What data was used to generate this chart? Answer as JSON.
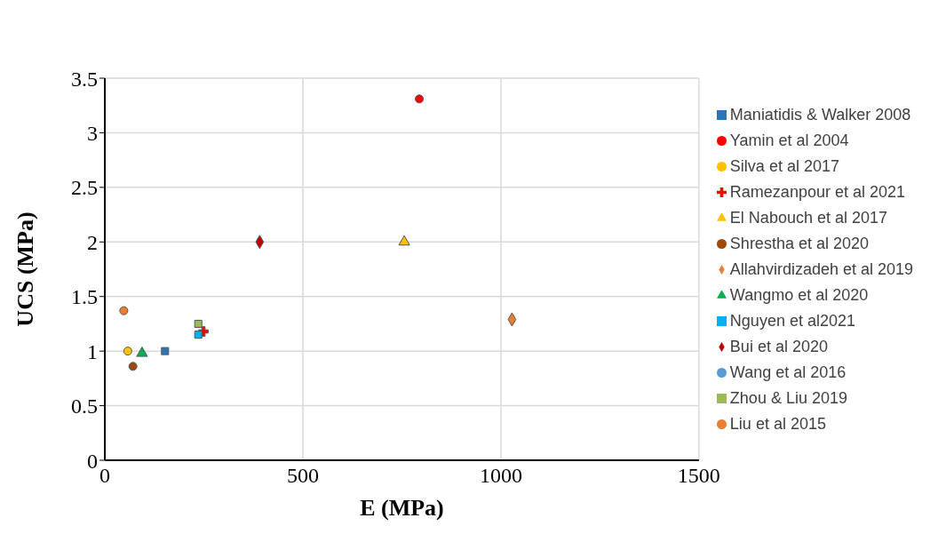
{
  "chart_data": {
    "type": "scatter",
    "xlabel": "E (MPa)",
    "ylabel": "UCS (MPa)",
    "xlim": [
      0,
      1500
    ],
    "xticks": [
      0,
      500,
      1000,
      1500
    ],
    "ylim": [
      0,
      3.5
    ],
    "yticks": [
      0,
      0.5,
      1,
      1.5,
      2,
      2.5,
      3,
      3.5
    ],
    "grid": true,
    "legend": "right",
    "series": [
      {
        "name": "Maniatidis & Walker 2008",
        "color": "#2e75b6",
        "marker": "square",
        "x": [
          152
        ],
        "values": [
          1.0
        ]
      },
      {
        "name": "Yamin et al 2004",
        "color": "#ff0000",
        "marker": "circle",
        "x": [
          794
        ],
        "values": [
          3.31
        ]
      },
      {
        "name": "Silva et al 2017",
        "color": "#ffc000",
        "marker": "circle",
        "x": [
          58
        ],
        "values": [
          1.0
        ]
      },
      {
        "name": "Ramezanpour et al 2021",
        "color": "#ff0000",
        "marker": "cross",
        "x": [
          249
        ],
        "values": [
          1.18
        ]
      },
      {
        "name": "El Nabouch et al 2017",
        "color": "#ffc000",
        "marker": "triangle",
        "x": [
          756
        ],
        "values": [
          2.0
        ]
      },
      {
        "name": "Shrestha et al 2020",
        "color": "#9e480e",
        "marker": "circle",
        "x": [
          71
        ],
        "values": [
          0.86
        ]
      },
      {
        "name": "Allahvirdizadeh et al 2019",
        "color": "#ed7d31",
        "marker": "diamond",
        "x": [
          1028
        ],
        "values": [
          1.29
        ]
      },
      {
        "name": "Wangmo et al 2020",
        "color": "#00b050",
        "marker": "triangle",
        "x": [
          94
        ],
        "values": [
          0.98
        ]
      },
      {
        "name": "Nguyen et al2021",
        "color": "#00b0f0",
        "marker": "square",
        "x": [
          236
        ],
        "values": [
          1.15
        ]
      },
      {
        "name": "Bui et al 2020",
        "color": "#c00000",
        "marker": "diamond",
        "x": [
          391
        ],
        "values": [
          2.0
        ]
      },
      {
        "name": "Wang et al 2016",
        "color": "#5b9bd5",
        "marker": "circle",
        "x": [
          null
        ],
        "values": [
          null
        ]
      },
      {
        "name": "Zhou & Liu 2019",
        "color": "#9bbb59",
        "marker": "square",
        "x": [
          236
        ],
        "values": [
          1.25
        ]
      },
      {
        "name": "Liu et al 2015",
        "color": "#ed7d31",
        "marker": "circle",
        "x": [
          48
        ],
        "values": [
          1.37
        ]
      }
    ]
  }
}
